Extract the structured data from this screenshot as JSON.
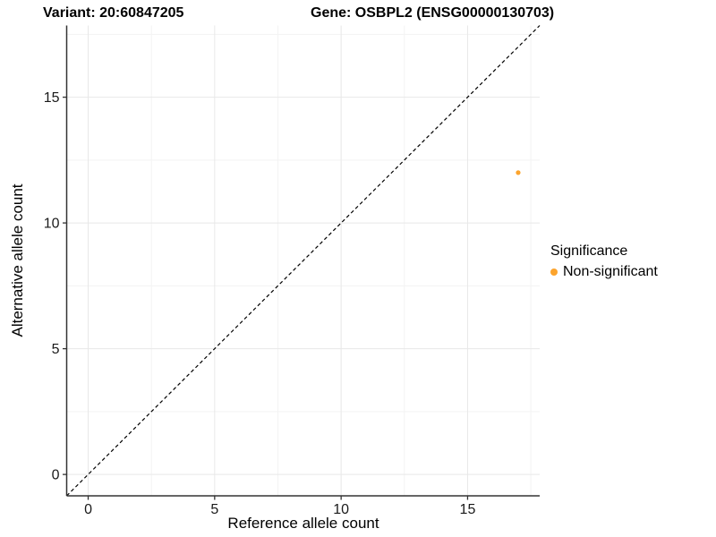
{
  "titles": {
    "variant": "Variant: 20:60847205",
    "gene": "Gene: OSBPL2 (ENSG00000130703)"
  },
  "colors": {
    "background": "#ffffff",
    "grid_major": "#e8e8e8",
    "grid_minor": "#f3f3f3",
    "axis_line": "#333333",
    "tick_mark": "#333333",
    "tick_label": "#1a1a1a",
    "dashed_line": "#000000",
    "point": "#FCA42D"
  },
  "chart_data": {
    "type": "scatter",
    "xlabel": "Reference allele count",
    "ylabel": "Alternative allele count",
    "xlim": [
      -0.85,
      17.85
    ],
    "ylim": [
      -0.85,
      17.85
    ],
    "xticks": [
      0,
      5,
      10,
      15
    ],
    "yticks": [
      0,
      5,
      10,
      15
    ],
    "minor_xticks": [
      2.5,
      7.5,
      12.5,
      17.5
    ],
    "minor_yticks": [
      2.5,
      7.5,
      12.5,
      17.5
    ],
    "grid": "major+minor",
    "reference_line": {
      "type": "identity",
      "slope": 1,
      "intercept": 0,
      "style": "dashed",
      "color": "#000000"
    },
    "series": [
      {
        "name": "Non-significant",
        "color": "#FCA42D",
        "points": [
          [
            17,
            12
          ]
        ]
      }
    ],
    "legend": {
      "title": "Significance",
      "position": "right",
      "entries": [
        {
          "label": "Non-significant",
          "color": "#FCA42D"
        }
      ]
    }
  }
}
